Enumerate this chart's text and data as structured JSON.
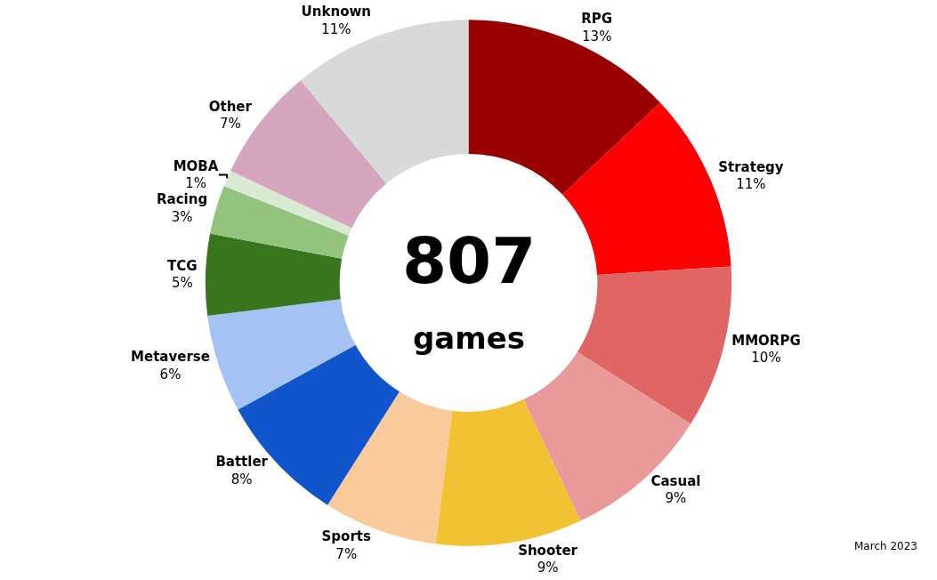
{
  "chart_data": {
    "type": "donut",
    "categories": [
      "RPG",
      "Strategy",
      "MMORPG",
      "Casual",
      "Shooter",
      "Sports",
      "Battler",
      "Metaverse",
      "TCG",
      "Racing",
      "MOBA",
      "Other",
      "Unknown"
    ],
    "values": [
      13,
      11,
      10,
      9,
      9,
      7,
      8,
      6,
      5,
      3,
      1,
      7,
      11
    ],
    "value_labels": [
      "13%",
      "11%",
      "10%",
      "9%",
      "9%",
      "7%",
      "8%",
      "6%",
      "5%",
      "3%",
      "1%",
      "7%",
      "11%"
    ],
    "colors": [
      "#990000",
      "#ff0000",
      "#e06666",
      "#ea9999",
      "#f1c232",
      "#f9cb9c",
      "#1155cc",
      "#a4c2f4",
      "#38761d",
      "#93c47d",
      "#d9ead3",
      "#d5a6bd",
      "#d9d9d9"
    ],
    "annotations": [
      "807",
      "games",
      "March 2023"
    ],
    "legend": false
  }
}
